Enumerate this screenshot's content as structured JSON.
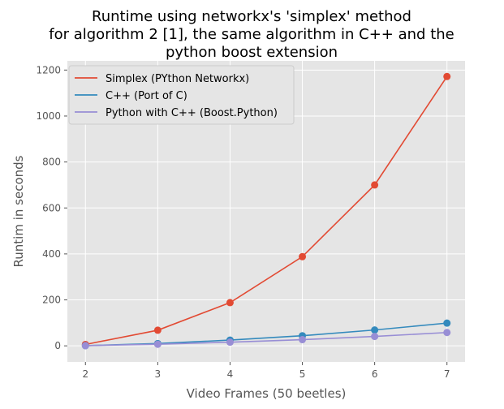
{
  "chart_data": {
    "type": "line",
    "title_lines": [
      "Runtime using networkx's 'simplex' method",
      "for algorithm 2 [1], the same algorithm in C++ and the",
      "python boost extension"
    ],
    "xlabel": "Video Frames (50 beetles)",
    "ylabel": "Runtim in seconds",
    "x": [
      2,
      3,
      4,
      5,
      6,
      7
    ],
    "xlim": [
      1.75,
      7.25
    ],
    "ylim": [
      -70,
      1240
    ],
    "xticks": [
      2,
      3,
      4,
      5,
      6,
      7
    ],
    "yticks": [
      0,
      200,
      400,
      600,
      800,
      1000,
      1200
    ],
    "grid": true,
    "legend_position": "top-left",
    "series": [
      {
        "name": "Simplex (PYthon Networkx)",
        "color": "#E24A33",
        "values": [
          6,
          68,
          188,
          388,
          700,
          1172
        ]
      },
      {
        "name": "C++ (Port of C)",
        "color": "#348ABD",
        "values": [
          1,
          10,
          25,
          44,
          69,
          99
        ]
      },
      {
        "name": "Python with C++ (Boost.Python)",
        "color": "#988ED5",
        "values": [
          1,
          7,
          16,
          27,
          41,
          58
        ]
      }
    ]
  }
}
